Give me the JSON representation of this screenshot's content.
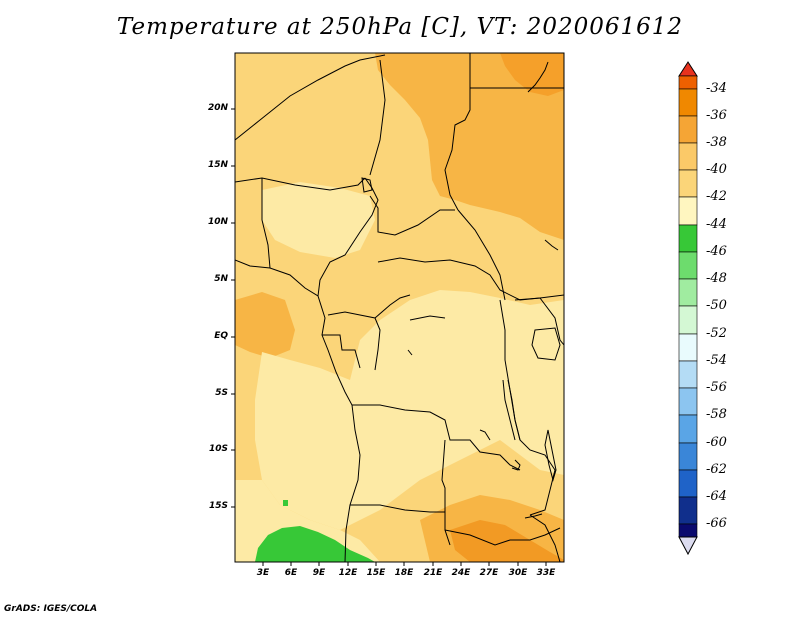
{
  "title": "Temperature at 250hPa [C], VT: 2020061612",
  "credit": "GrADS: IGES/COLA",
  "map": {
    "lat_ticks": [
      "20N",
      "15N",
      "10N",
      "5N",
      "EQ",
      "5S",
      "10S",
      "15S"
    ],
    "lon_ticks": [
      "3E",
      "6E",
      "9E",
      "12E",
      "15E",
      "18E",
      "21E",
      "24E",
      "27E",
      "30E",
      "33E"
    ]
  },
  "colorbar": {
    "labels": [
      "-34",
      "-36",
      "-38",
      "-40",
      "-42",
      "-44",
      "-46",
      "-48",
      "-50",
      "-52",
      "-54",
      "-56",
      "-58",
      "-60",
      "-62",
      "-64",
      "-66"
    ],
    "colors": [
      "#ee6000",
      "#f08800",
      "#f5a535",
      "#fbc968",
      "#fee79b",
      "#fff6c0",
      "#37c837",
      "#6ddc6d",
      "#a0eca0",
      "#d4f8d4",
      "#e9fbfd",
      "#b4dcf5",
      "#8cc5f0",
      "#5aa5e6",
      "#3a86d8",
      "#1f63c8",
      "#0a4ab4",
      "#102f8c",
      "#0a0a6e",
      "#dcdcf0"
    ],
    "top_arrow_color": "#e8321e",
    "bottom_arrow_color": "#dcdcf0"
  }
}
